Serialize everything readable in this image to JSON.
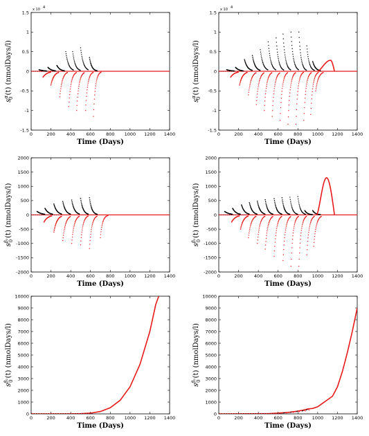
{
  "colors": {
    "primary": "#000000",
    "secondary": "#e8191a",
    "axis": "#000000"
  },
  "chart_data": [
    {
      "id": "p1",
      "type": "scatter",
      "xlabel": "Time (Days)",
      "ylabel_sym": "s",
      "ylabel_sup": "α",
      "ylabel_sub": "0",
      "ylabel_rest": "(t) (nmolDays/l)",
      "xlim": [
        0,
        1400
      ],
      "ylim": [
        -1.5,
        1.5
      ],
      "multiplier_text": "x 10",
      "multiplier_exp": "4",
      "xticks": [
        "0",
        "200",
        "400",
        "600",
        "800",
        "1000",
        "1200",
        "1400"
      ],
      "yticks": [
        "-1.5",
        "-1",
        "-0.5",
        "0",
        "0.5",
        "1",
        "1.5"
      ],
      "series": [
        {
          "color": "primary",
          "pulses": [
            [
              80,
              0.04,
              0.06
            ],
            [
              170,
              0.1,
              0.08
            ],
            [
              260,
              0.15,
              0.09
            ],
            [
              350,
              0.5,
              0.1
            ],
            [
              420,
              0.5,
              0.11
            ],
            [
              500,
              0.6,
              0.1
            ],
            [
              590,
              0.35,
              0.12
            ]
          ]
        },
        {
          "color": "secondary",
          "pulses": [
            [
              120,
              -0.15,
              0.07
            ],
            [
              200,
              -0.35,
              0.09
            ],
            [
              290,
              -0.65,
              0.11
            ],
            [
              380,
              -0.9,
              0.12
            ],
            [
              460,
              -1.0,
              0.12
            ],
            [
              550,
              -1.0,
              0.13
            ],
            [
              630,
              -1.15,
              0.14
            ]
          ]
        }
      ],
      "bump": null
    },
    {
      "id": "p2",
      "type": "scatter",
      "xlabel": "Time (Days)",
      "ylabel_sym": "s",
      "ylabel_sup": "α",
      "ylabel_sub": "0",
      "ylabel_rest": "(t) (nmolDays/l)",
      "xlim": [
        0,
        1400
      ],
      "ylim": [
        -1.5,
        1.5
      ],
      "multiplier_text": "x 10",
      "multiplier_exp": "4",
      "xticks": [
        "0",
        "200",
        "400",
        "600",
        "800",
        "1000",
        "1200",
        "1400"
      ],
      "yticks": [
        "-1.5",
        "-1",
        "-0.5",
        "0",
        "0.5",
        "1",
        "1.5"
      ],
      "series": [
        {
          "color": "primary",
          "pulses": [
            [
              80,
              0.04,
              0.06
            ],
            [
              170,
              0.1,
              0.08
            ],
            [
              260,
              0.3,
              0.09
            ],
            [
              340,
              0.4,
              0.1
            ],
            [
              420,
              0.55,
              0.1
            ],
            [
              500,
              0.75,
              0.11
            ],
            [
              580,
              0.85,
              0.12
            ],
            [
              650,
              0.95,
              0.12
            ],
            [
              730,
              1.0,
              0.12
            ],
            [
              810,
              1.0,
              0.13
            ],
            [
              890,
              0.65,
              0.12
            ],
            [
              950,
              0.25,
              0.1
            ]
          ]
        },
        {
          "color": "secondary",
          "pulses": [
            [
              120,
              -0.15,
              0.07
            ],
            [
              210,
              -0.35,
              0.09
            ],
            [
              300,
              -0.6,
              0.1
            ],
            [
              380,
              -0.85,
              0.11
            ],
            [
              460,
              -1.0,
              0.12
            ],
            [
              540,
              -1.15,
              0.12
            ],
            [
              620,
              -1.25,
              0.13
            ],
            [
              700,
              -1.35,
              0.13
            ],
            [
              780,
              -1.35,
              0.14
            ],
            [
              860,
              -1.25,
              0.13
            ],
            [
              930,
              -1.1,
              0.13
            ],
            [
              980,
              -0.5,
              0.1
            ]
          ]
        }
      ],
      "bump": {
        "x0": 1000,
        "peak_x": 1130,
        "peak": 0.28,
        "x1": 1170
      }
    },
    {
      "id": "p3",
      "type": "scatter",
      "xlabel": "Time (Days)",
      "ylabel_sym": "s",
      "ylabel_sup": "β₁",
      "ylabel_sub": "0",
      "ylabel_rest": "(t) (nmolDays/l)",
      "xlim": [
        0,
        1400
      ],
      "ylim": [
        -2000,
        2000
      ],
      "multiplier_text": "",
      "multiplier_exp": "",
      "xticks": [
        "0",
        "200",
        "400",
        "600",
        "800",
        "1000",
        "1200",
        "1400"
      ],
      "yticks": [
        "-2000",
        "-1500",
        "-1000",
        "-500",
        "0",
        "500",
        "1000",
        "1500",
        "2000"
      ],
      "series": [
        {
          "color": "primary",
          "pulses": [
            [
              60,
              120,
              0.06
            ],
            [
              140,
              230,
              0.08
            ],
            [
              230,
              380,
              0.09
            ],
            [
              320,
              470,
              0.1
            ],
            [
              410,
              520,
              0.1
            ],
            [
              500,
              580,
              0.11
            ],
            [
              590,
              600,
              0.12
            ]
          ]
        },
        {
          "color": "secondary",
          "pulses": [
            [
              130,
              -250,
              0.07
            ],
            [
              230,
              -600,
              0.09
            ],
            [
              320,
              -900,
              0.1
            ],
            [
              410,
              -1000,
              0.11
            ],
            [
              500,
              -1050,
              0.12
            ],
            [
              590,
              -1180,
              0.12
            ],
            [
              700,
              -800,
              0.13
            ]
          ]
        }
      ],
      "bump": null
    },
    {
      "id": "p4",
      "type": "scatter",
      "xlabel": "Time (Days)",
      "ylabel_sym": "s",
      "ylabel_sup": "β₁",
      "ylabel_sub": "0",
      "ylabel_rest": "(t) (nmolDays/l)",
      "xlim": [
        0,
        1400
      ],
      "ylim": [
        -2000,
        2000
      ],
      "multiplier_text": "",
      "multiplier_exp": "",
      "xticks": [
        "0",
        "200",
        "400",
        "600",
        "800",
        "1000",
        "1200",
        "1400"
      ],
      "yticks": [
        "-2000",
        "-1500",
        "-1000",
        "-500",
        "0",
        "500",
        "1000",
        "1500",
        "2000"
      ],
      "series": [
        {
          "color": "primary",
          "pulses": [
            [
              60,
              120,
              0.06
            ],
            [
              140,
              230,
              0.08
            ],
            [
              230,
              350,
              0.09
            ],
            [
              310,
              430,
              0.1
            ],
            [
              390,
              480,
              0.1
            ],
            [
              470,
              530,
              0.11
            ],
            [
              560,
              570,
              0.11
            ],
            [
              640,
              600,
              0.12
            ],
            [
              720,
              620,
              0.12
            ],
            [
              800,
              640,
              0.12
            ],
            [
              870,
              150,
              0.1
            ],
            [
              950,
              150,
              0.1
            ]
          ]
        },
        {
          "color": "secondary",
          "pulses": [
            [
              130,
              -250,
              0.07
            ],
            [
              220,
              -500,
              0.09
            ],
            [
              300,
              -800,
              0.1
            ],
            [
              390,
              -1000,
              0.11
            ],
            [
              470,
              -1200,
              0.11
            ],
            [
              560,
              -1450,
              0.12
            ],
            [
              650,
              -1600,
              0.12
            ],
            [
              730,
              -1800,
              0.13
            ],
            [
              810,
              -1800,
              0.13
            ],
            [
              890,
              -1400,
              0.12
            ],
            [
              960,
              -1100,
              0.11
            ]
          ]
        }
      ],
      "bump": {
        "x0": 990,
        "peak_x": 1090,
        "peak": 1300,
        "x1": 1170
      }
    },
    {
      "id": "p5",
      "type": "line",
      "xlabel": "Time (Days)",
      "ylabel_sym": "s",
      "ylabel_sup": "β₂",
      "ylabel_sub": "0",
      "ylabel_rest": "(t) (nmolDays/l)",
      "xlim": [
        0,
        1400
      ],
      "ylim": [
        0,
        10000
      ],
      "multiplier_text": "",
      "multiplier_exp": "",
      "xticks": [
        "0",
        "200",
        "400",
        "600",
        "800",
        "1000",
        "1200",
        "1400"
      ],
      "yticks": [
        "0",
        "1000",
        "2000",
        "3000",
        "4000",
        "5000",
        "6000",
        "7000",
        "8000",
        "9000",
        "10000"
      ],
      "curve": [
        [
          0,
          0
        ],
        [
          400,
          5
        ],
        [
          500,
          20
        ],
        [
          600,
          60
        ],
        [
          700,
          200
        ],
        [
          800,
          520
        ],
        [
          900,
          1150
        ],
        [
          1000,
          2300
        ],
        [
          1100,
          4200
        ],
        [
          1200,
          7000
        ],
        [
          1260,
          9300
        ],
        [
          1290,
          10000
        ]
      ],
      "wiggles": []
    },
    {
      "id": "p6",
      "type": "line",
      "xlabel": "Time (Days)",
      "ylabel_sym": "s",
      "ylabel_sup": "β₂",
      "ylabel_sub": "0",
      "ylabel_rest": "(t) (nmolDays/l)",
      "xlim": [
        0,
        1400
      ],
      "ylim": [
        0,
        10000
      ],
      "multiplier_text": "",
      "multiplier_exp": "",
      "xticks": [
        "0",
        "200",
        "400",
        "600",
        "800",
        "1000",
        "1200",
        "1400"
      ],
      "yticks": [
        "0",
        "1000",
        "2000",
        "3000",
        "4000",
        "5000",
        "6000",
        "7000",
        "8000",
        "9000",
        "10000"
      ],
      "curve": [
        [
          0,
          0
        ],
        [
          500,
          20
        ],
        [
          600,
          60
        ],
        [
          700,
          120
        ],
        [
          800,
          230
        ],
        [
          860,
          330
        ],
        [
          900,
          420
        ],
        [
          950,
          460
        ],
        [
          1000,
          600
        ],
        [
          1050,
          900
        ],
        [
          1100,
          1200
        ],
        [
          1150,
          1500
        ],
        [
          1200,
          2300
        ],
        [
          1250,
          3600
        ],
        [
          1300,
          5200
        ],
        [
          1350,
          7000
        ],
        [
          1400,
          9000
        ]
      ],
      "wiggles": [
        [
          650,
          60,
          100
        ],
        [
          720,
          100,
          180
        ],
        [
          780,
          150,
          260
        ],
        [
          840,
          220,
          300
        ],
        [
          880,
          300,
          380
        ]
      ]
    }
  ]
}
